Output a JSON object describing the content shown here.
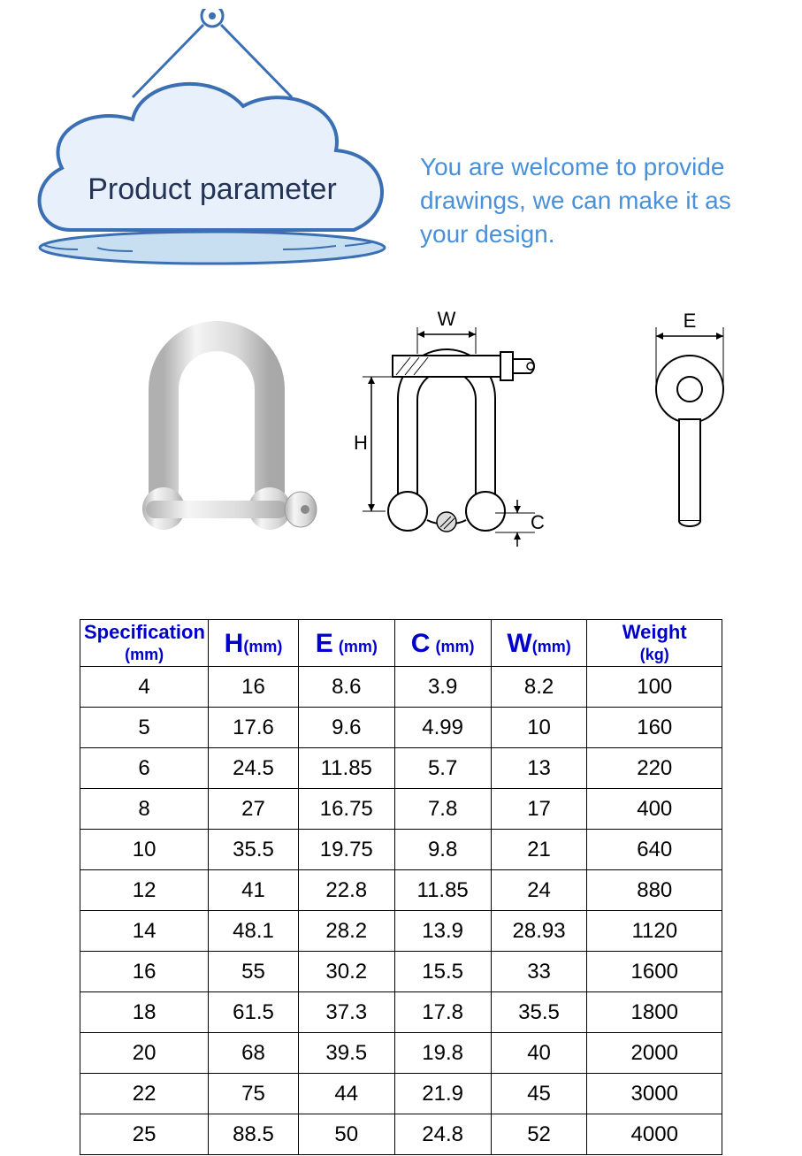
{
  "header": {
    "title": "Product parameter",
    "welcome": "You are welcome to provide drawings, we can make it as your design.",
    "cloud_stroke": "#3a6fb3",
    "cloud_fill": "#e8f1fb",
    "cloud_shadow": "#c8dff2",
    "title_color": "#223355",
    "welcome_color": "#4a90d9"
  },
  "diagram": {
    "labels": {
      "W": "W",
      "H": "H",
      "C": "C",
      "E": "E"
    },
    "stroke": "#000000",
    "fill": "#f5f5f5",
    "shade": "#cfcfcf",
    "photo_shade": "#d0d0d0",
    "photo_light": "#f2f2f2"
  },
  "table": {
    "header_color": "#0000cc",
    "border_color": "#000000",
    "columns": [
      {
        "key": "spec",
        "label_main": "Specification",
        "label_sub": "(mm)"
      },
      {
        "key": "h",
        "label_main": "H",
        "label_sub": "(mm)"
      },
      {
        "key": "e",
        "label_main": "E",
        "label_sub": "(mm)"
      },
      {
        "key": "c",
        "label_main": "C",
        "label_sub": "(mm)"
      },
      {
        "key": "w",
        "label_main": "W",
        "label_sub": "(mm)"
      },
      {
        "key": "wt",
        "label_main": "Weight",
        "label_sub": "(kg)"
      }
    ],
    "rows": [
      [
        "4",
        "16",
        "8.6",
        "3.9",
        "8.2",
        "100"
      ],
      [
        "5",
        "17.6",
        "9.6",
        "4.99",
        "10",
        "160"
      ],
      [
        "6",
        "24.5",
        "11.85",
        "5.7",
        "13",
        "220"
      ],
      [
        "8",
        "27",
        "16.75",
        "7.8",
        "17",
        "400"
      ],
      [
        "10",
        "35.5",
        "19.75",
        "9.8",
        "21",
        "640"
      ],
      [
        "12",
        "41",
        "22.8",
        "11.85",
        "24",
        "880"
      ],
      [
        "14",
        "48.1",
        "28.2",
        "13.9",
        "28.93",
        "1120"
      ],
      [
        "16",
        "55",
        "30.2",
        "15.5",
        "33",
        "1600"
      ],
      [
        "18",
        "61.5",
        "37.3",
        "17.8",
        "35.5",
        "1800"
      ],
      [
        "20",
        "68",
        "39.5",
        "19.8",
        "40",
        "2000"
      ],
      [
        "22",
        "75",
        "44",
        "21.9",
        "45",
        "3000"
      ],
      [
        "25",
        "88.5",
        "50",
        "24.8",
        "52",
        "4000"
      ]
    ]
  }
}
